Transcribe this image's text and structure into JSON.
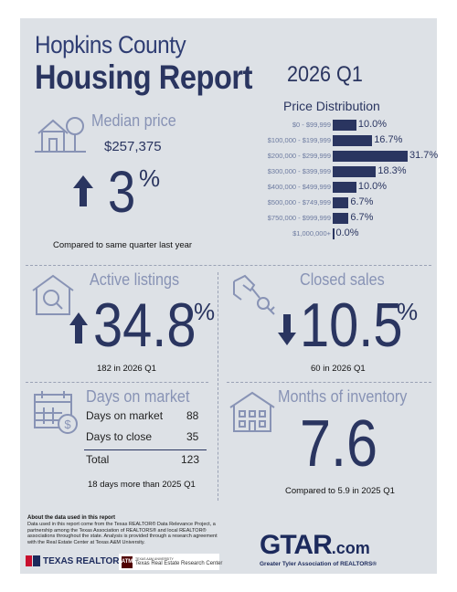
{
  "header": {
    "county": "Hopkins County",
    "report": "Housing Report",
    "quarter": "2026 Q1"
  },
  "median_price": {
    "title": "Median price",
    "value": "$257,375",
    "change": "3",
    "pct_sign": "%",
    "note": "Compared to same quarter last year",
    "direction": "up"
  },
  "price_distribution": {
    "title": "Price Distribution",
    "rows": [
      {
        "label": "$0 - $99,999",
        "value": 10.0,
        "display": "10.0%"
      },
      {
        "label": "$100,000 - $199,999",
        "value": 16.7,
        "display": "16.7%"
      },
      {
        "label": "$200,000 - $299,999",
        "value": 31.7,
        "display": "31.7%"
      },
      {
        "label": "$300,000 - $399,999",
        "value": 18.3,
        "display": "18.3%"
      },
      {
        "label": "$400,000 - $499,999",
        "value": 10.0,
        "display": "10.0%"
      },
      {
        "label": "$500,000 - $749,999",
        "value": 6.7,
        "display": "6.7%"
      },
      {
        "label": "$750,000 - $999,999",
        "value": 6.7,
        "display": "6.7%"
      },
      {
        "label": "$1,000,000+",
        "value": 0.0,
        "display": "0.0%"
      }
    ]
  },
  "active_listings": {
    "title": "Active listings",
    "change": "34.8",
    "pct_sign": "%",
    "direction": "up",
    "note": "182 in 2026 Q1"
  },
  "closed_sales": {
    "title": "Closed sales",
    "change": "10.5",
    "pct_sign": "%",
    "direction": "down",
    "note": "60 in 2026 Q1"
  },
  "days_on_market": {
    "title": "Days on market",
    "rows": [
      {
        "label": "Days on market",
        "value": "88"
      },
      {
        "label": "Days to close",
        "value": "35"
      }
    ],
    "total_label": "Total",
    "total_value": "123",
    "note": "18 days more than 2025 Q1"
  },
  "months_inventory": {
    "title": "Months of inventory",
    "value": "7.6",
    "note": "Compared to 5.9 in 2025 Q1"
  },
  "about": {
    "heading": "About the data used in this report",
    "text": "Data used in this report come from the Texas REALTOR® Data Relevance Project, a partnership among the Texas Association of REALTORS® and local REALTOR® associations throughout the state. Analysis is provided through a research agreement with the Real Estate Center at Texas A&M University."
  },
  "logos": {
    "texas_realtors": "TEXAS REALTORS",
    "tamu_small": "TEXAS A&M UNIVERSITY",
    "recenter": "Texas Real Estate Research Center",
    "gtar": "GTAR",
    "gtar_suffix": ".com",
    "gtar_full": "Greater Tyler Association of REALTORS®"
  }
}
